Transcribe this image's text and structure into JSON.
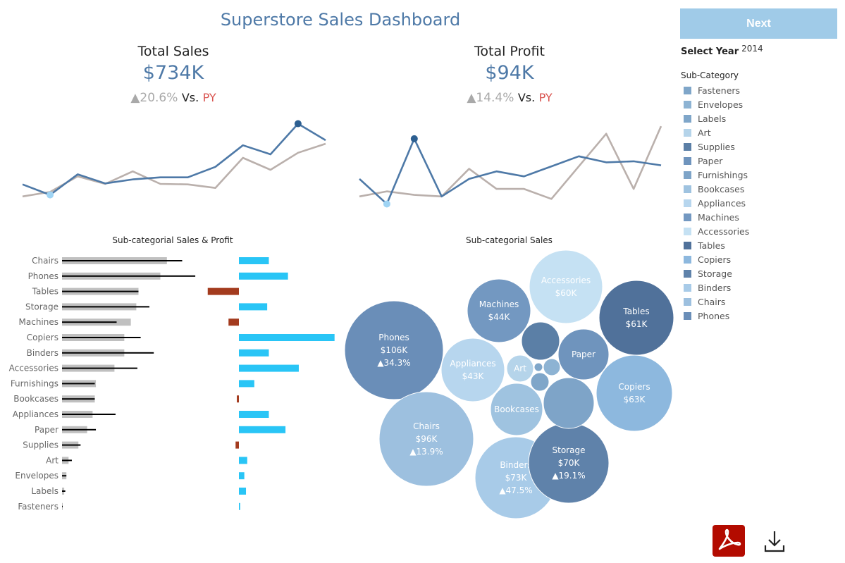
{
  "title": "Superstore Sales Dashboard",
  "next_label": "Next",
  "filters": {
    "select_year_label": "Select Year",
    "year": "2014",
    "subcategory_label": "Sub-Category"
  },
  "kpis": {
    "sales": {
      "title": "Total Sales",
      "value": "$734K",
      "delta": "▲20.6%",
      "vs": "Vs.",
      "py": "PY"
    },
    "profit": {
      "title": "Total Profit",
      "value": "$94K",
      "delta": "▲14.4%",
      "vs": "Vs.",
      "py": "PY"
    }
  },
  "legend": [
    {
      "label": "Fasteners",
      "color": "#7fa6c9"
    },
    {
      "label": "Envelopes",
      "color": "#8db3d3"
    },
    {
      "label": "Labels",
      "color": "#7fa6c9"
    },
    {
      "label": "Art",
      "color": "#b5d4ea"
    },
    {
      "label": "Supplies",
      "color": "#5b7fa6"
    },
    {
      "label": "Paper",
      "color": "#6f94bd"
    },
    {
      "label": "Furnishings",
      "color": "#7ea4c8"
    },
    {
      "label": "Bookcases",
      "color": "#9fc3e0"
    },
    {
      "label": "Appliances",
      "color": "#b7d6ee"
    },
    {
      "label": "Machines",
      "color": "#7398c1"
    },
    {
      "label": "Accessories",
      "color": "#c5e1f3"
    },
    {
      "label": "Tables",
      "color": "#50719a"
    },
    {
      "label": "Copiers",
      "color": "#8db8de"
    },
    {
      "label": "Storage",
      "color": "#5f82aa"
    },
    {
      "label": "Binders",
      "color": "#a8cbe8"
    },
    {
      "label": "Chairs",
      "color": "#9dc0df"
    },
    {
      "label": "Phones",
      "color": "#6a8eb8"
    }
  ],
  "chart_data": [
    {
      "type": "line",
      "title": "",
      "x": [
        1,
        2,
        3,
        4,
        5,
        6,
        7,
        8,
        9,
        10,
        11,
        12
      ],
      "series": [
        {
          "color": "#4e79a7",
          "values": [
            44,
            23,
            64,
            46,
            54,
            58,
            58,
            79,
            122,
            104,
            165,
            132
          ]
        },
        {
          "color": "#bab0ac",
          "values": [
            20,
            29,
            60,
            45,
            70,
            45,
            44,
            37,
            97,
            73,
            107,
            125
          ]
        }
      ],
      "ylim": [
        0,
        170
      ]
    },
    {
      "type": "line",
      "title": "",
      "x": [
        1,
        2,
        3,
        4,
        5,
        6,
        7,
        8,
        9,
        10,
        11,
        12
      ],
      "series": [
        {
          "color": "#4e79a7",
          "values": [
            5.5,
            0.5,
            13.5,
            2,
            5.5,
            7,
            6,
            8,
            10,
            8.8,
            9,
            8.2
          ]
        },
        {
          "color": "#bab0ac",
          "values": [
            2,
            3,
            2.3,
            2,
            7.5,
            3.5,
            3.5,
            1.5,
            8,
            14.5,
            3.5,
            16
          ]
        }
      ],
      "ylim": [
        0,
        17
      ]
    },
    {
      "type": "bar",
      "title": "Sub-categorial Sales & Profit",
      "categories": [
        "Chairs",
        "Phones",
        "Tables",
        "Storage",
        "Machines",
        "Copiers",
        "Binders",
        "Accessories",
        "Furnishings",
        "Bookcases",
        "Appliances",
        "Paper",
        "Supplies",
        "Art",
        "Envelopes",
        "Labels",
        "Fasteners"
      ],
      "series": [
        {
          "color": "#c0c0c0",
          "values": [
            96,
            90,
            70,
            68,
            63,
            57,
            57,
            48,
            31,
            30,
            28,
            23,
            15,
            6,
            4,
            2,
            0.5
          ]
        },
        {
          "color": "#000000",
          "values": [
            110,
            122,
            70,
            80,
            50,
            72,
            84,
            69,
            30,
            30,
            49,
            31,
            17,
            9,
            4,
            3,
            0.5
          ]
        },
        {
          "color": "#29c5f6",
          "values": [
            7.2,
            11.8,
            -7.5,
            6.8,
            -2.5,
            23,
            7.2,
            14.4,
            3.7,
            -0.5,
            7.2,
            11.2,
            -0.8,
            2,
            1.3,
            1.7,
            0.3
          ]
        }
      ]
    },
    {
      "type": "bubble",
      "title": "Sub-categorial Sales",
      "bubbles": [
        {
          "label": "Phones",
          "value": "$106K",
          "delta": "▲34.3%",
          "color": "#6a8eb8"
        },
        {
          "label": "Chairs",
          "value": "$96K",
          "delta": "▲13.9%",
          "color": "#9dc0df"
        },
        {
          "label": "Binders",
          "value": "$73K",
          "delta": "▲47.5%",
          "color": "#a8cbe8"
        },
        {
          "label": "Storage",
          "value": "$70K",
          "delta": "▲19.1%",
          "color": "#5f82aa"
        },
        {
          "label": "Copiers",
          "value": "$63K",
          "delta": "",
          "color": "#8db8de"
        },
        {
          "label": "Tables",
          "value": "$61K",
          "delta": "",
          "color": "#50719a"
        },
        {
          "label": "Accessories",
          "value": "$60K",
          "delta": "",
          "color": "#c5e1f3"
        },
        {
          "label": "Machines",
          "value": "$44K",
          "delta": "",
          "color": "#7398c1"
        },
        {
          "label": "Appliances",
          "value": "$43K",
          "delta": "",
          "color": "#b7d6ee"
        },
        {
          "label": "Paper",
          "value": "",
          "delta": "",
          "color": "#6f94bd"
        },
        {
          "label": "Bookcases",
          "value": "",
          "delta": "",
          "color": "#9fc3e0"
        },
        {
          "label": "Art",
          "value": "",
          "delta": "",
          "color": "#b5d4ea"
        },
        {
          "label": "",
          "value": "",
          "delta": "",
          "color": "#5b7fa6"
        },
        {
          "label": "",
          "value": "",
          "delta": "",
          "color": "#7ea4c8"
        },
        {
          "label": "",
          "value": "",
          "delta": "",
          "color": "#8db3d3"
        },
        {
          "label": "",
          "value": "",
          "delta": "",
          "color": "#7fa6c9"
        },
        {
          "label": "",
          "value": "",
          "delta": "",
          "color": "#7fa6c9"
        }
      ]
    }
  ]
}
